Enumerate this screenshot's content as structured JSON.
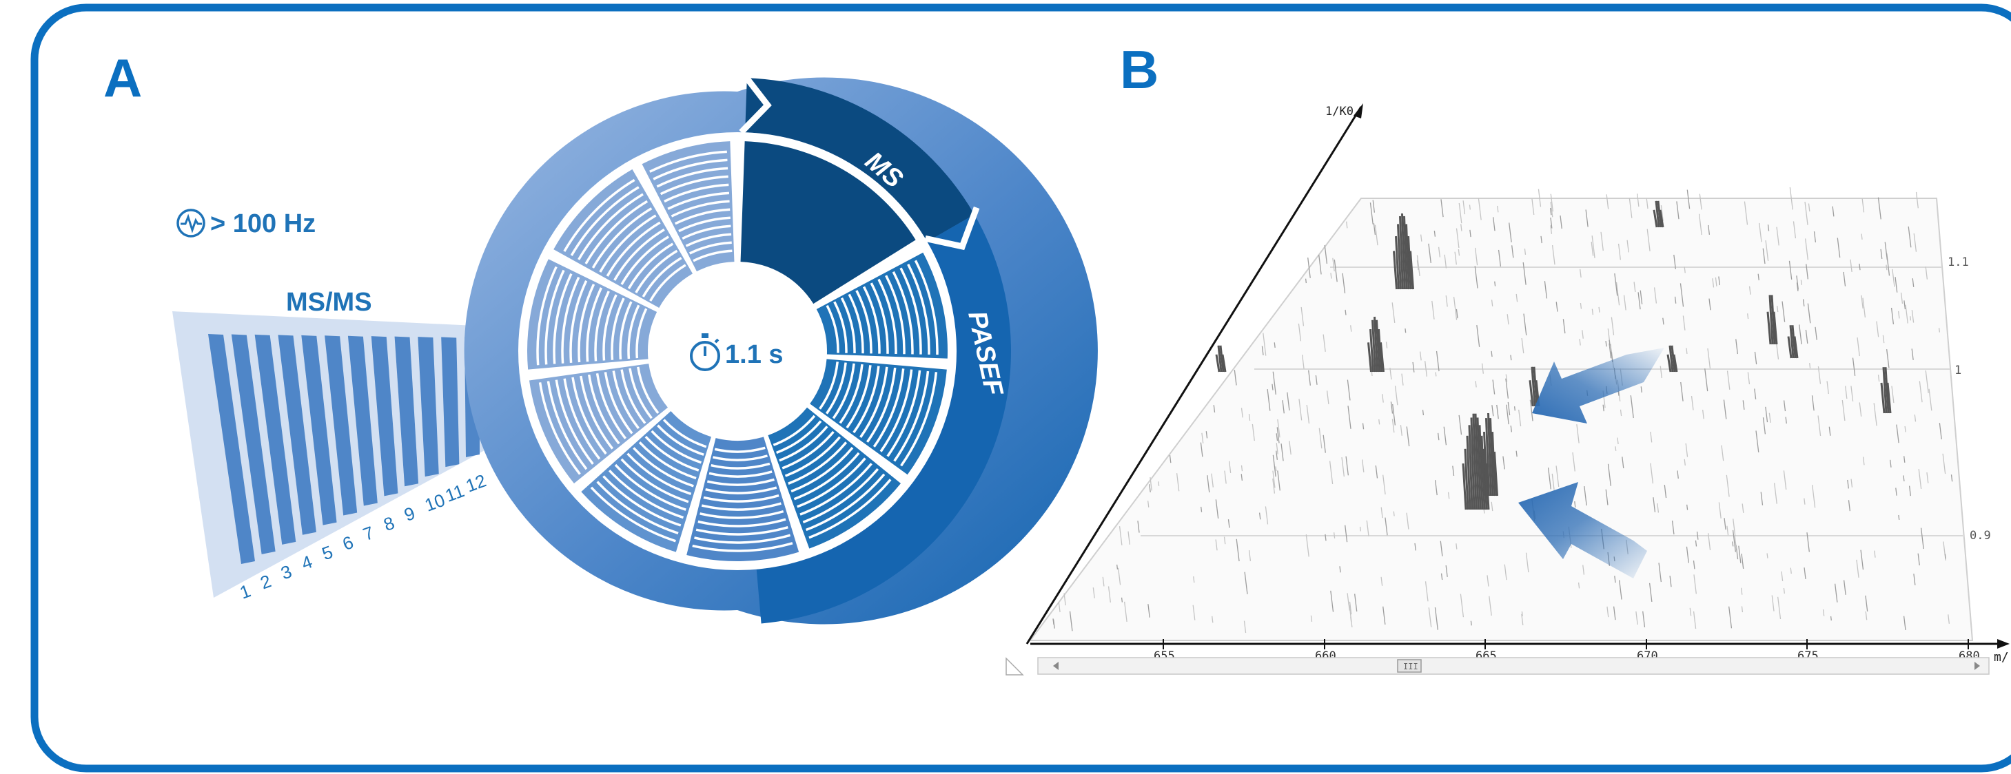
{
  "panel_a": {
    "letter": "A",
    "rate_label": "> 100 Hz",
    "rate_icon": "heartbeat-circle-icon",
    "msms_label": "MS/MS",
    "ms_label": "MS",
    "pasef_label": "PASEF",
    "cycle_time": "1.1 s",
    "cycle_icon": "stopwatch-icon",
    "scan_numbers": [
      "1",
      "2",
      "3",
      "4",
      "5",
      "6",
      "7",
      "8",
      "9",
      "10",
      "11",
      "12"
    ],
    "colors": {
      "dark": "#0b4a80",
      "mid": "#1f73b7",
      "light": "#86a9d8",
      "pale": "#d3e0f2"
    }
  },
  "panel_b": {
    "letter": "B",
    "y_axis_label": "1/K0",
    "x_axis_label": "m/",
    "x_ticks": [
      "655",
      "660",
      "665",
      "670",
      "675",
      "680"
    ],
    "right_ticks": [
      "1.1",
      "1",
      "0.9"
    ],
    "scrollbar_thumb": "III",
    "arrow_color": "#2d6db5"
  },
  "frame": {
    "border_color": "#0b6fc0"
  }
}
